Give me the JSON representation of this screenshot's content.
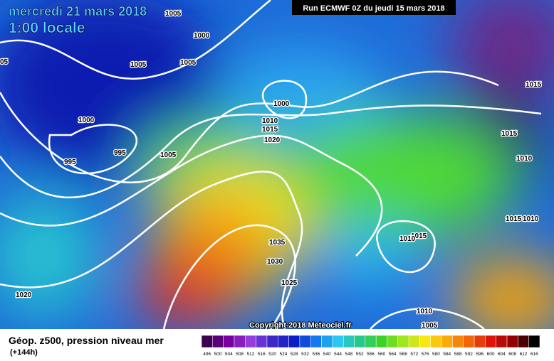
{
  "header": {
    "date": "mercredi 21 mars 2018",
    "time": "1:00 locale",
    "run": "Run ECMWF 0Z du jeudi 15 mars 2018"
  },
  "copyright": "Copyright 2018 Meteociel.fr",
  "footer": {
    "title": "Géop. z500, pression niveau mer",
    "lead": "(+144h)"
  },
  "scale": {
    "labels": [
      496,
      500,
      504,
      508,
      512,
      516,
      520,
      524,
      528,
      532,
      536,
      540,
      544,
      548,
      552,
      556,
      560,
      564,
      568,
      572,
      576,
      580,
      584,
      588,
      592,
      596,
      600,
      604,
      608,
      612,
      616
    ]
  },
  "isobars": [
    "1005",
    "1000",
    "1005",
    "1005",
    "05",
    "1000",
    "995",
    "995",
    "1005",
    "1000",
    "1010",
    "1015",
    "1020",
    "1015",
    "1015",
    "1010",
    "1015",
    "1010",
    "1015",
    "1010",
    "1035",
    "1030",
    "1025",
    "1020",
    "1010",
    "1005"
  ]
}
